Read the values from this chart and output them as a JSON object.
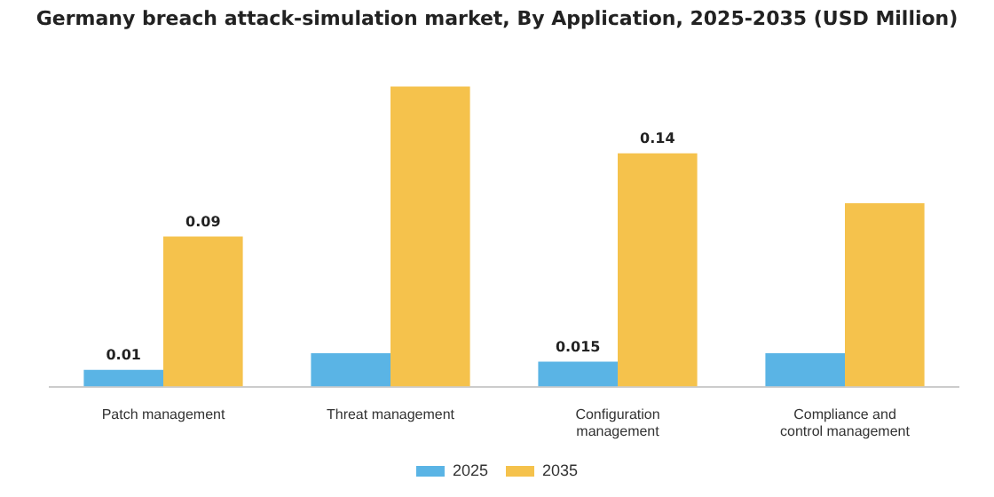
{
  "chart_data": {
    "type": "bar",
    "title": "Germany breach attack-simulation market, By Application, 2025-2035 (USD Million)",
    "categories": [
      "Patch management",
      "Threat management",
      "Configuration\nmanagement",
      "Compliance and\ncontrol management"
    ],
    "tick_labels": "x",
    "legend": "bottom",
    "grid": false,
    "series": [
      {
        "name": "2025",
        "color": "#5ab4e5",
        "values": [
          0.01,
          0.02,
          0.015,
          0.02
        ],
        "value_labels": [
          "0.01",
          null,
          "0.015",
          null
        ]
      },
      {
        "name": "2035",
        "color": "#f5c24c",
        "values": [
          0.09,
          0.18,
          0.14,
          0.11
        ],
        "value_labels": [
          "0.09",
          null,
          "0.14",
          null
        ]
      }
    ]
  }
}
